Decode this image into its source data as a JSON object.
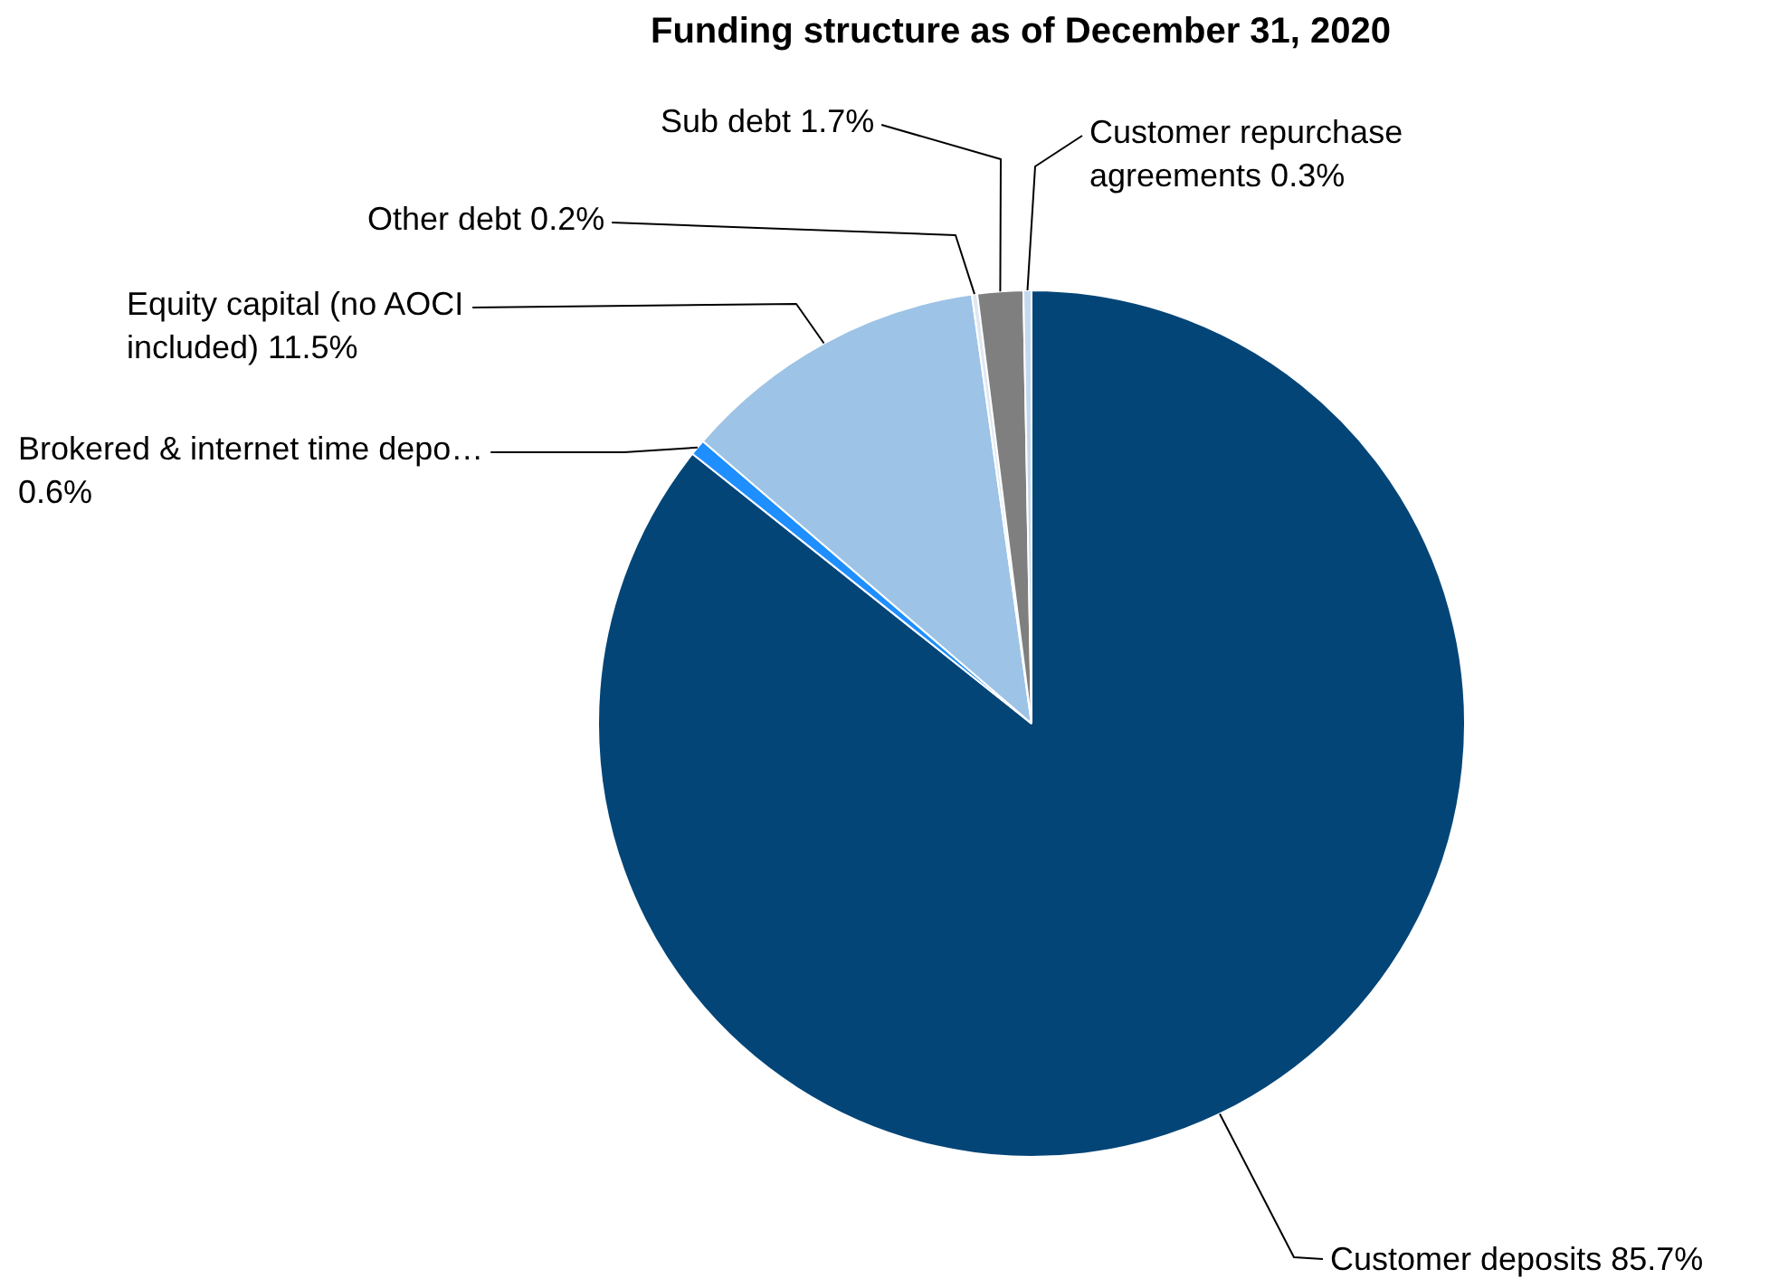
{
  "chart_data": {
    "type": "pie",
    "title": "Funding structure as of December 31, 2020",
    "categories": [
      "Customer deposits",
      "Brokered & internet time depo…",
      "Equity capital (no AOCI included)",
      "Other debt",
      "Sub debt",
      "Customer repurchase agreements"
    ],
    "values": [
      85.7,
      0.6,
      11.5,
      0.2,
      1.7,
      0.3
    ],
    "value_labels": [
      "85.7%",
      "0.6%",
      "11.5%",
      "0.2%",
      "1.7%",
      "0.3%"
    ],
    "colors": [
      "#034577",
      "#1f8fff",
      "#9dc3e6",
      "#dfe8f2",
      "#7f7f7f",
      "#c5d9ee"
    ],
    "legend": false
  }
}
